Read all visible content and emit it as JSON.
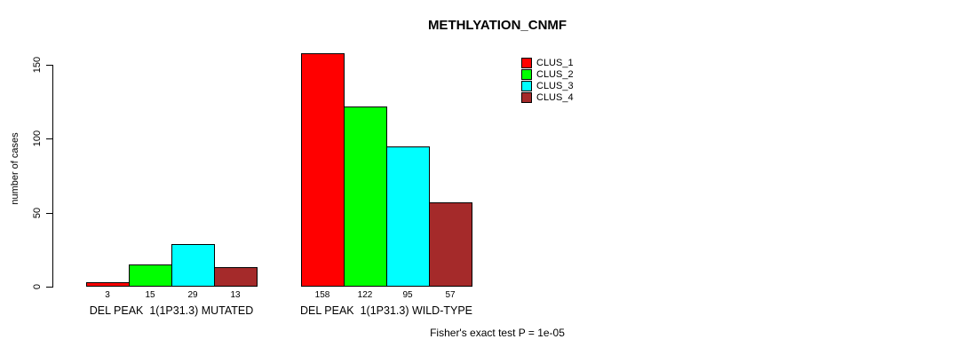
{
  "chart_data": {
    "type": "bar",
    "title": "METHLYATION_CNMF",
    "ylabel": "number of cases",
    "xlabel": "",
    "ylim": [
      0,
      150
    ],
    "yticks": [
      0,
      50,
      100,
      150
    ],
    "grid": false,
    "legend_position": "top-right",
    "categories": [
      "DEL PEAK  1(1P31.3) MUTATED",
      "DEL PEAK  1(1P31.3) WILD-TYPE"
    ],
    "series": [
      {
        "name": "CLUS_1",
        "color": "#FF0000",
        "values": [
          3,
          158
        ]
      },
      {
        "name": "CLUS_2",
        "color": "#00FF00",
        "values": [
          15,
          122
        ]
      },
      {
        "name": "CLUS_3",
        "color": "#00FFFF",
        "values": [
          29,
          95
        ]
      },
      {
        "name": "CLUS_4",
        "color": "#A52A2A",
        "values": [
          13,
          57
        ]
      }
    ],
    "bar_value_labels": [
      [
        "3",
        "15",
        "29",
        "13"
      ],
      [
        "158",
        "122",
        "95",
        "57"
      ]
    ],
    "annotation": "Fisher's exact test P = 1e-05"
  }
}
